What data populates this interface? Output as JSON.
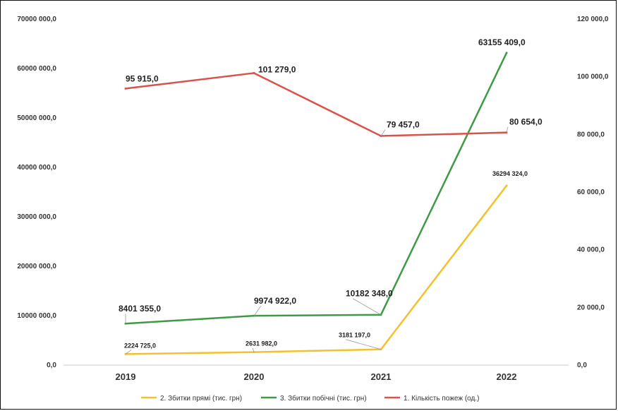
{
  "chart_data": {
    "type": "line",
    "categories": [
      "2019",
      "2020",
      "2021",
      "2022"
    ],
    "left_axis": {
      "ylim": [
        0,
        70000000
      ],
      "ticks": [
        "0,0",
        "10000 000,0",
        "20000 000,0",
        "30000 000,0",
        "40000 000,0",
        "50000 000,0",
        "60000 000,0",
        "70000 000,0"
      ]
    },
    "right_axis": {
      "ylim": [
        0,
        120000
      ],
      "ticks": [
        "0,0",
        "20 000,0",
        "40 000,0",
        "60 000,0",
        "80 000,0",
        "100 000,0",
        "120 000,0"
      ]
    },
    "grid": false,
    "legend_position": "bottom",
    "series": [
      {
        "name": "2. Збитки прямі (тис. грн)",
        "color": "#f2c12e",
        "axis": "left",
        "values": [
          2224725,
          2631982,
          3181197,
          36294324
        ],
        "labels": [
          "2224 725,0",
          "2631 982,0",
          "3181 197,0",
          "36294 324,0"
        ]
      },
      {
        "name": "3. Збитки побічні (тис. грн)",
        "color": "#3f9a45",
        "axis": "left",
        "values": [
          8401355,
          9974922,
          10182348,
          63155409
        ],
        "labels": [
          "8401 355,0",
          "9974 922,0",
          "10182 348,0",
          "63155 409,0"
        ]
      },
      {
        "name": "1. Кількість пожеж (од.)",
        "color": "#d9534a",
        "axis": "right",
        "values": [
          95915,
          101279,
          79457,
          80654
        ],
        "labels": [
          "95 915,0",
          "101 279,0",
          "79 457,0",
          "80 654,0"
        ]
      }
    ]
  }
}
